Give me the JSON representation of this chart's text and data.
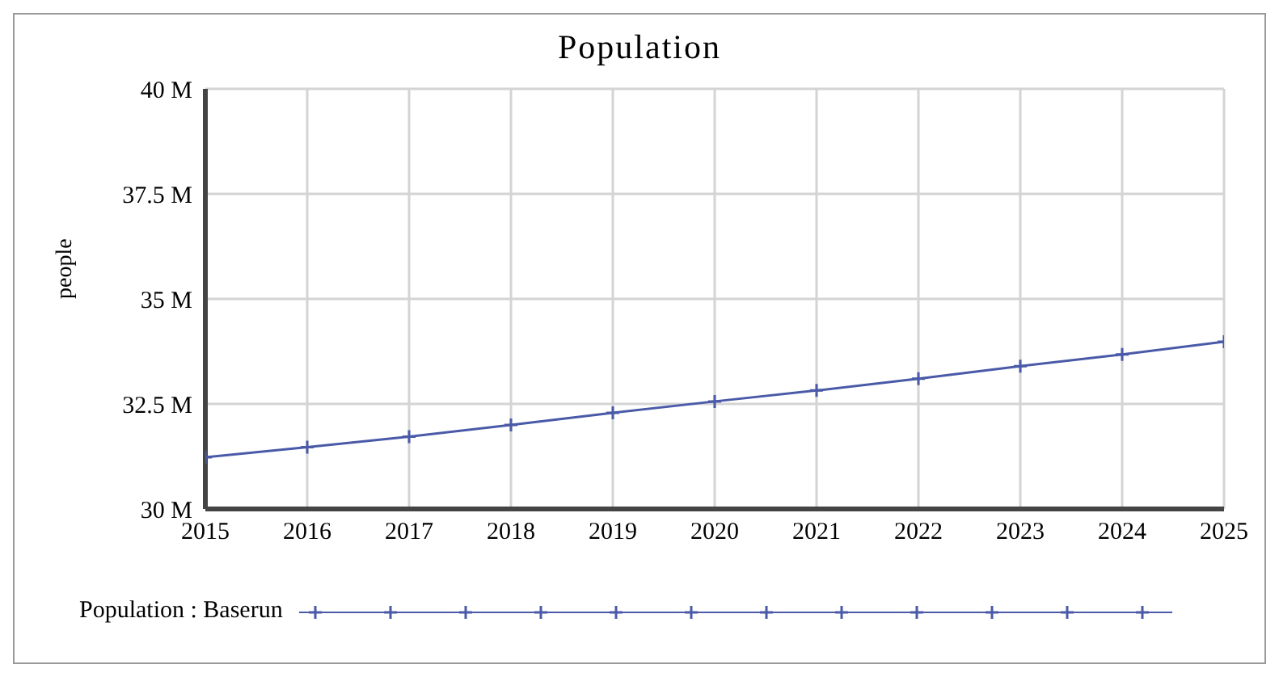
{
  "chart_data": {
    "type": "line",
    "title": "Population",
    "ylabel": "people",
    "x": [
      2015,
      2016,
      2017,
      2018,
      2019,
      2020,
      2021,
      2022,
      2023,
      2024,
      2025
    ],
    "series": [
      {
        "name": "Population : Baserun",
        "color": "#4a5aa8",
        "values": [
          31.23,
          31.47,
          31.72,
          32.0,
          32.29,
          32.56,
          32.82,
          33.1,
          33.4,
          33.68,
          33.98
        ]
      }
    ],
    "xlim": [
      2015,
      2025
    ],
    "xticks": [
      2015,
      2016,
      2017,
      2018,
      2019,
      2020,
      2021,
      2022,
      2023,
      2024,
      2025
    ],
    "ylim": [
      30,
      40
    ],
    "yticks": [
      {
        "value": 30,
        "label": "30 M"
      },
      {
        "value": 32.5,
        "label": "32.5 M"
      },
      {
        "value": 35,
        "label": "35 M"
      },
      {
        "value": 37.5,
        "label": "37.5 M"
      },
      {
        "value": 40,
        "label": "40 M"
      }
    ],
    "grid": true,
    "legend": "bottom",
    "marker": "cross",
    "line_style": "solid"
  }
}
